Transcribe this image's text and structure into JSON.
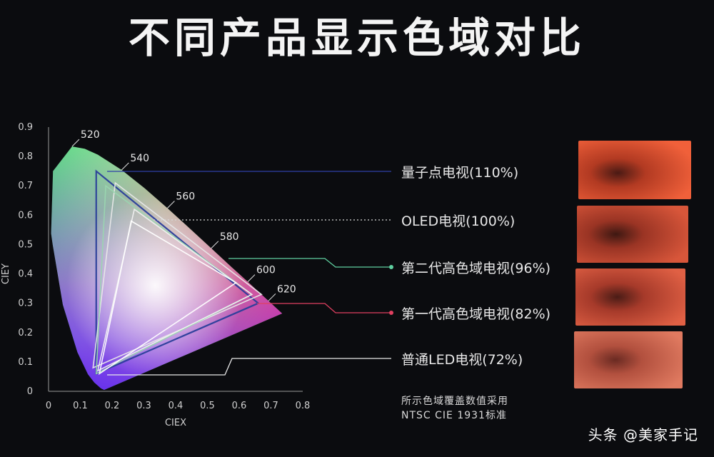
{
  "title": "不同产品显示色域对比",
  "watermark": "头条 @美家手记",
  "note_lines": [
    "所示色域覆盖数值采用",
    "NTSC CIE 1931标准"
  ],
  "chart_data": {
    "type": "scatter",
    "title": "不同产品显示色域对比",
    "xlabel": "CIEX",
    "ylabel": "CIEY",
    "xlim": [
      0,
      0.8
    ],
    "ylim": [
      0,
      0.9
    ],
    "x_ticks": [
      "0",
      "0.1",
      "0.2",
      "0.3",
      "0.4",
      "0.5",
      "0.6",
      "0.7",
      "0.8"
    ],
    "y_ticks": [
      "0",
      "0.1",
      "0.2",
      "0.3",
      "0.4",
      "0.5",
      "0.6",
      "0.7",
      "0.8",
      "0.9"
    ],
    "spectral_locus": [
      [
        0.175,
        0.005
      ],
      [
        0.165,
        0.01
      ],
      [
        0.144,
        0.03
      ],
      [
        0.124,
        0.058
      ],
      [
        0.091,
        0.133
      ],
      [
        0.045,
        0.295
      ],
      [
        0.013,
        0.5
      ],
      [
        0.008,
        0.538
      ],
      [
        0.014,
        0.75
      ],
      [
        0.074,
        0.834
      ],
      [
        0.114,
        0.826
      ],
      [
        0.155,
        0.806
      ],
      [
        0.23,
        0.754
      ],
      [
        0.302,
        0.692
      ],
      [
        0.374,
        0.624
      ],
      [
        0.444,
        0.555
      ],
      [
        0.512,
        0.487
      ],
      [
        0.575,
        0.424
      ],
      [
        0.627,
        0.373
      ],
      [
        0.666,
        0.334
      ],
      [
        0.692,
        0.308
      ],
      [
        0.735,
        0.265
      ]
    ],
    "wavelength_labels": [
      {
        "text": "520",
        "x": 0.074,
        "y": 0.834
      },
      {
        "text": "540",
        "x": 0.23,
        "y": 0.754
      },
      {
        "text": "560",
        "x": 0.374,
        "y": 0.624
      },
      {
        "text": "580",
        "x": 0.512,
        "y": 0.487
      },
      {
        "text": "600",
        "x": 0.627,
        "y": 0.373
      },
      {
        "text": "620",
        "x": 0.692,
        "y": 0.308
      }
    ],
    "series": [
      {
        "name": "量子点电视(110%)",
        "color": "#2a3e9a",
        "points": [
          [
            0.15,
            0.75
          ],
          [
            0.15,
            0.06
          ],
          [
            0.66,
            0.3
          ]
        ]
      },
      {
        "name": "OLED电视(100%)",
        "color": "#e8e8e8",
        "points": [
          [
            0.21,
            0.71
          ],
          [
            0.14,
            0.08
          ],
          [
            0.67,
            0.33
          ]
        ]
      },
      {
        "name": "第二代高色域电视(96%)",
        "color": "#9ad6b0",
        "points": [
          [
            0.18,
            0.7
          ],
          [
            0.15,
            0.06
          ],
          [
            0.64,
            0.33
          ]
        ]
      },
      {
        "name": "第一代高色域电视(82%)",
        "color": "#f0f0f0",
        "points": [
          [
            0.27,
            0.62
          ],
          [
            0.155,
            0.07
          ],
          [
            0.64,
            0.33
          ]
        ]
      },
      {
        "name": "普通LED电视(72%)",
        "color": "#ffffff",
        "points": [
          [
            0.26,
            0.58
          ],
          [
            0.16,
            0.06
          ],
          [
            0.59,
            0.37
          ]
        ]
      }
    ]
  }
}
